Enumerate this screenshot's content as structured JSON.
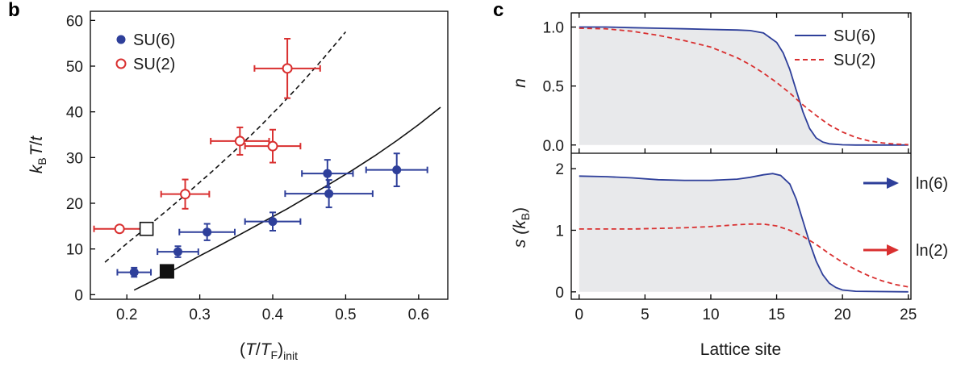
{
  "colors": {
    "su6": "#2e3f9a",
    "su2": "#d93030",
    "fill": "#e8e9eb",
    "axis": "#000000"
  },
  "chart_data": [
    {
      "panel_label": "b",
      "type": "scatter",
      "xlabel": "(T/T_F)init",
      "xlabel_parts": {
        "open": "(",
        "T": "T",
        "slash": "/",
        "T2": "T",
        "sub_F": "F",
        "close": ")",
        "sub_init": "init"
      },
      "ylabel": "kBT/t",
      "ylabel_parts": {
        "k": "k",
        "sub_B": "B",
        "T": "T",
        "slash": "/",
        "t": "t"
      },
      "xlim": [
        0.15,
        0.64
      ],
      "ylim": [
        -1,
        62
      ],
      "xticks": [
        0.2,
        0.3,
        0.4,
        0.5,
        0.6
      ],
      "xtick_labels": [
        "0.2",
        "0.3",
        "0.4",
        "0.5",
        "0.6"
      ],
      "yticks": [
        0,
        10,
        20,
        30,
        40,
        50,
        60
      ],
      "ytick_labels": [
        "0",
        "10",
        "20",
        "30",
        "40",
        "50",
        "60"
      ],
      "legend": [
        {
          "label": "SU(6)",
          "marker": "filled-circle",
          "color": "su6"
        },
        {
          "label": "SU(2)",
          "marker": "open-circle",
          "color": "su2"
        }
      ],
      "legend_position": "top-left",
      "series": [
        {
          "name": "SU(6)",
          "marker": "filled-circle",
          "points": [
            {
              "x": 0.21,
              "y": 4.9,
              "xerr": 0.023,
              "yerr": 1.0
            },
            {
              "x": 0.27,
              "y": 9.4,
              "xerr": 0.028,
              "yerr": 1.2
            },
            {
              "x": 0.31,
              "y": 13.7,
              "xerr": 0.038,
              "yerr": 1.8
            },
            {
              "x": 0.4,
              "y": 16.0,
              "xerr": 0.038,
              "yerr": 2.0
            },
            {
              "x": 0.475,
              "y": 26.5,
              "xerr": 0.035,
              "yerr": 3.0
            },
            {
              "x": 0.477,
              "y": 22.1,
              "xerr": 0.06,
              "yerr": 3.0
            },
            {
              "x": 0.57,
              "y": 27.3,
              "xerr": 0.042,
              "yerr": 3.6
            }
          ]
        },
        {
          "name": "SU(2)",
          "marker": "open-circle",
          "points": [
            {
              "x": 0.19,
              "y": 14.4,
              "xerr": 0.035,
              "yerr": 0.0
            },
            {
              "x": 0.28,
              "y": 22.0,
              "xerr": 0.033,
              "yerr": 3.2
            },
            {
              "x": 0.355,
              "y": 33.6,
              "xerr": 0.04,
              "yerr": 3.0
            },
            {
              "x": 0.4,
              "y": 32.5,
              "xerr": 0.038,
              "yerr": 3.6
            },
            {
              "x": 0.42,
              "y": 49.5,
              "xerr": 0.045,
              "yerr": 6.5
            }
          ]
        },
        {
          "name": "SU(6) square",
          "marker": "filled-square",
          "points": [
            {
              "x": 0.255,
              "y": 5.1
            }
          ]
        },
        {
          "name": "SU(2) square",
          "marker": "open-square",
          "points": [
            {
              "x": 0.227,
              "y": 14.4
            }
          ]
        }
      ],
      "curves": [
        {
          "name": "SU(6) fit",
          "style": "solid",
          "x": [
            0.21,
            0.24,
            0.27,
            0.3,
            0.33,
            0.36,
            0.39,
            0.42,
            0.45,
            0.48,
            0.51,
            0.54,
            0.57,
            0.6,
            0.63
          ],
          "y": [
            1.0,
            3.4,
            5.9,
            8.5,
            11.0,
            13.6,
            16.2,
            18.8,
            21.6,
            24.4,
            27.3,
            30.4,
            33.7,
            37.2,
            41.0
          ]
        },
        {
          "name": "SU(2) fit",
          "style": "dashed",
          "x": [
            0.17,
            0.2,
            0.23,
            0.26,
            0.29,
            0.32,
            0.35,
            0.38,
            0.41,
            0.44,
            0.47,
            0.5
          ],
          "y": [
            7.1,
            11.2,
            15.1,
            19.1,
            23.2,
            27.4,
            31.8,
            36.4,
            41.3,
            46.4,
            51.8,
            57.5
          ]
        }
      ]
    },
    {
      "panel_label": "c",
      "type": "line",
      "xlabel": "Lattice site",
      "xlim": [
        -0.6,
        25.2
      ],
      "xticks": [
        0,
        5,
        10,
        15,
        20,
        25
      ],
      "xtick_labels": [
        "0",
        "5",
        "10",
        "15",
        "20",
        "25"
      ],
      "top": {
        "ylabel": "n",
        "ylim": [
          -0.07,
          1.12
        ],
        "yticks": [
          0.0,
          0.5,
          1.0
        ],
        "ytick_labels": [
          "0.0",
          "0.5",
          "1.0"
        ],
        "legend": [
          {
            "label": "SU(6)",
            "style": "solid",
            "color": "su6"
          },
          {
            "label": "SU(2)",
            "style": "dashed",
            "color": "su2"
          }
        ],
        "legend_position": "top-right",
        "series": [
          {
            "name": "SU(6)",
            "style": "solid",
            "filled": true,
            "x": [
              0,
              2,
              4,
              6,
              8,
              10,
              12,
              13,
              14,
              15,
              15.5,
              16,
              16.5,
              17,
              17.5,
              18,
              18.5,
              19,
              20,
              21,
              22,
              25
            ],
            "y": [
              1.0,
              1.0,
              0.995,
              0.99,
              0.985,
              0.98,
              0.975,
              0.97,
              0.95,
              0.87,
              0.78,
              0.64,
              0.46,
              0.28,
              0.14,
              0.06,
              0.025,
              0.01,
              0.002,
              0.0,
              0.0,
              0.0
            ]
          },
          {
            "name": "SU(2)",
            "style": "dashed",
            "x": [
              0,
              2,
              4,
              6,
              8,
              10,
              12,
              13,
              14,
              15,
              16,
              17,
              18,
              19,
              20,
              21,
              22,
              23,
              24,
              25
            ],
            "y": [
              0.99,
              0.985,
              0.965,
              0.93,
              0.885,
              0.83,
              0.74,
              0.68,
              0.61,
              0.53,
              0.44,
              0.34,
              0.25,
              0.17,
              0.11,
              0.065,
              0.035,
              0.018,
              0.008,
              0.003
            ]
          }
        ]
      },
      "bottom": {
        "ylabel": "s (kB)",
        "ylabel_parts": {
          "s": "s (",
          "k": "k",
          "sub_B": "B",
          "close": ")"
        },
        "ylim": [
          -0.12,
          2.25
        ],
        "yticks": [
          0,
          1,
          2
        ],
        "ytick_labels": [
          "0",
          "1",
          "2"
        ],
        "annotations": [
          {
            "label": "ln(6)",
            "value": 1.79,
            "color": "su6"
          },
          {
            "label": "ln(2)",
            "value": 0.693,
            "color": "su2"
          }
        ],
        "series": [
          {
            "name": "SU(6)",
            "style": "solid",
            "filled": true,
            "x": [
              0,
              2,
              4,
              6,
              8,
              10,
              12,
              13,
              14,
              14.7,
              15.3,
              16,
              16.5,
              17,
              17.5,
              18,
              18.5,
              19,
              19.5,
              20,
              21,
              25
            ],
            "y": [
              1.88,
              1.87,
              1.85,
              1.82,
              1.81,
              1.81,
              1.83,
              1.86,
              1.9,
              1.92,
              1.89,
              1.75,
              1.5,
              1.15,
              0.8,
              0.5,
              0.28,
              0.14,
              0.07,
              0.03,
              0.01,
              0.0
            ]
          },
          {
            "name": "SU(2)",
            "style": "dashed",
            "x": [
              0,
              2,
              4,
              6,
              8,
              10,
              12,
              13,
              14,
              15,
              16,
              17,
              18,
              19,
              20,
              21,
              22,
              23,
              24,
              25
            ],
            "y": [
              1.02,
              1.02,
              1.02,
              1.03,
              1.04,
              1.06,
              1.09,
              1.1,
              1.1,
              1.07,
              1.0,
              0.9,
              0.77,
              0.62,
              0.48,
              0.36,
              0.26,
              0.18,
              0.12,
              0.08
            ]
          }
        ]
      }
    }
  ]
}
